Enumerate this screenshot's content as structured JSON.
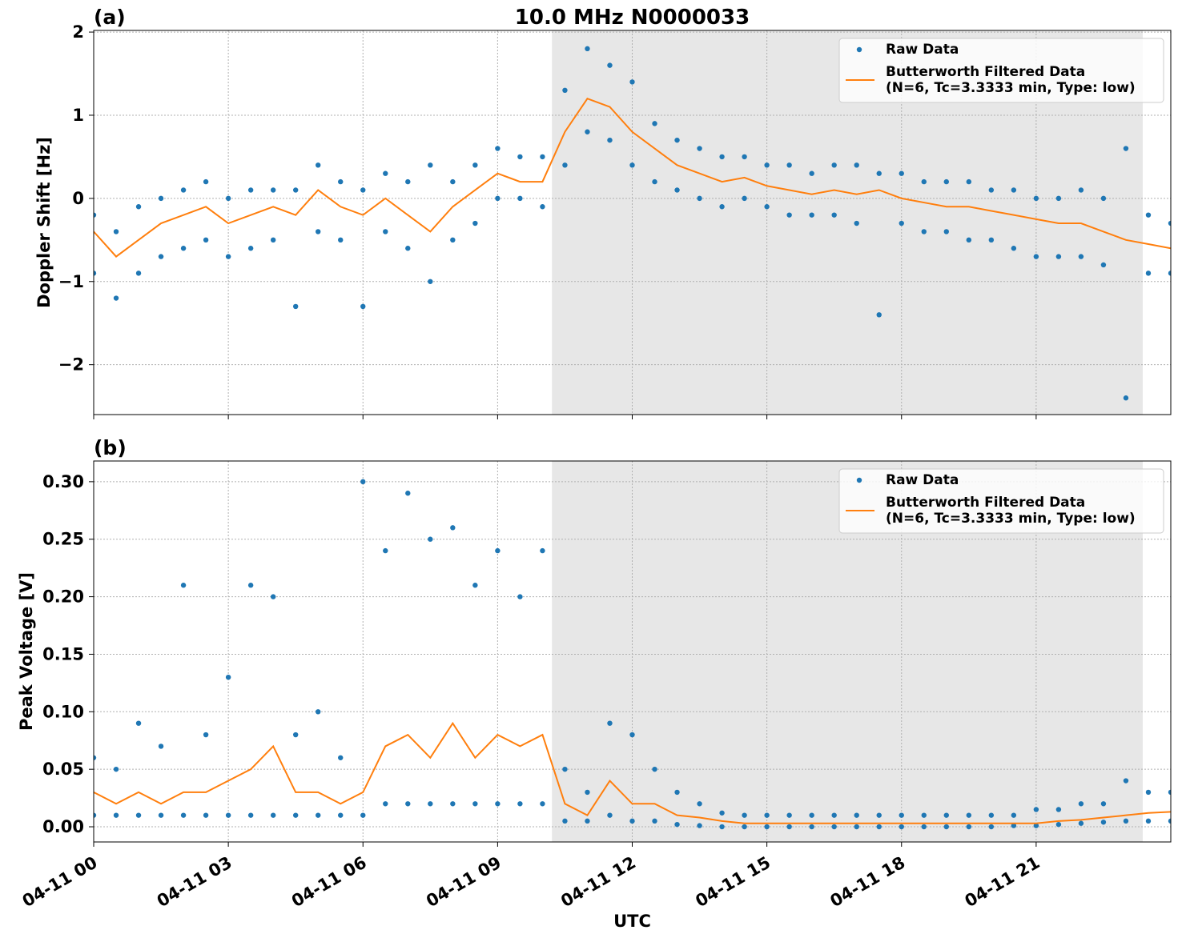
{
  "chart_data": [
    {
      "type": "line",
      "panel_label": "(a)",
      "title": "10.0 MHz N0000033",
      "ylabel": "Doppler Shift [Hz]",
      "xlim": [
        0,
        24
      ],
      "xticks": [
        0,
        3,
        6,
        9,
        12,
        15,
        18,
        21
      ],
      "ylim": [
        -2.6,
        2.02
      ],
      "yticks": [
        {
          "value": -2,
          "label": "−2"
        },
        {
          "value": -1,
          "label": "−1"
        },
        0,
        1,
        2
      ],
      "grid": true,
      "legend": "upper right",
      "shaded_span": [
        10.21,
        23.375
      ],
      "series": [
        {
          "name": "Raw Data",
          "color": "#1f77b4",
          "kind": "scatter",
          "x": [
            0,
            0.5,
            1,
            1.5,
            2,
            2.5,
            3,
            3.5,
            4,
            4.5,
            5,
            5.5,
            6,
            6.5,
            7,
            7.5,
            8,
            8.5,
            9,
            9.5,
            10,
            10.5,
            11,
            11.5,
            12,
            12.5,
            13,
            13.5,
            14,
            14.5,
            15,
            15.5,
            16,
            16.5,
            17,
            17.5,
            18,
            18.5,
            19,
            19.5,
            20,
            20.5,
            21,
            21.5,
            22,
            22.5,
            23,
            23.5,
            24,
            0,
            0.5,
            1,
            1.5,
            2,
            2.5,
            3,
            3.5,
            4,
            4.5,
            5,
            5.5,
            6,
            6.5,
            7,
            7.5,
            8,
            8.5,
            9,
            9.5,
            10,
            10.5,
            11,
            11.5,
            12,
            12.5,
            13,
            13.5,
            14,
            14.5,
            15,
            15.5,
            16,
            16.5,
            17,
            17.5,
            18,
            18.5,
            19,
            19.5,
            20,
            20.5,
            21,
            21.5,
            22,
            22.5,
            23,
            23.5,
            24
          ],
          "values": [
            -0.2,
            -0.4,
            -0.1,
            0.0,
            0.1,
            0.2,
            0.0,
            0.1,
            0.1,
            0.1,
            0.4,
            0.2,
            0.1,
            0.3,
            0.2,
            0.4,
            0.2,
            0.4,
            0.6,
            0.5,
            0.5,
            1.3,
            1.8,
            1.6,
            1.4,
            0.9,
            0.7,
            0.6,
            0.5,
            0.5,
            0.4,
            0.4,
            0.3,
            0.4,
            0.4,
            0.3,
            0.3,
            0.2,
            0.2,
            0.2,
            0.1,
            0.1,
            0.0,
            0.0,
            0.1,
            0.0,
            0.6,
            -0.2,
            -0.3,
            -0.9,
            -1.2,
            -0.9,
            -0.7,
            -0.6,
            -0.5,
            -0.7,
            -0.6,
            -0.5,
            -1.3,
            -0.4,
            -0.5,
            -1.3,
            -0.4,
            -0.6,
            -1.0,
            -0.5,
            -0.3,
            0.0,
            0.0,
            -0.1,
            0.4,
            0.8,
            0.7,
            0.4,
            0.2,
            0.1,
            0.0,
            -0.1,
            0.0,
            -0.1,
            -0.2,
            -0.2,
            -0.2,
            -0.3,
            -1.4,
            -0.3,
            -0.4,
            -0.4,
            -0.5,
            -0.5,
            -0.6,
            -0.7,
            -0.7,
            -0.7,
            -0.8,
            -2.4,
            -0.9,
            -0.9
          ]
        },
        {
          "name": "Butterworth Filtered Data\n(N=6, Tc=3.3333 min, Type: low)",
          "color": "#ff7f0e",
          "kind": "line",
          "x": [
            0,
            0.5,
            1,
            1.5,
            2,
            2.5,
            3,
            3.5,
            4,
            4.5,
            5,
            5.5,
            6,
            6.5,
            7,
            7.5,
            8,
            8.5,
            9,
            9.5,
            10,
            10.5,
            11,
            11.5,
            12,
            12.5,
            13,
            13.5,
            14,
            14.5,
            15,
            15.5,
            16,
            16.5,
            17,
            17.5,
            18,
            18.5,
            19,
            19.5,
            20,
            20.5,
            21,
            21.5,
            22,
            22.5,
            23,
            23.5,
            24
          ],
          "values": [
            -0.4,
            -0.7,
            -0.5,
            -0.3,
            -0.2,
            -0.1,
            -0.3,
            -0.2,
            -0.1,
            -0.2,
            0.1,
            -0.1,
            -0.2,
            0.0,
            -0.2,
            -0.4,
            -0.1,
            0.1,
            0.3,
            0.2,
            0.2,
            0.8,
            1.2,
            1.1,
            0.8,
            0.6,
            0.4,
            0.3,
            0.2,
            0.25,
            0.15,
            0.1,
            0.05,
            0.1,
            0.05,
            0.1,
            0.0,
            -0.05,
            -0.1,
            -0.1,
            -0.15,
            -0.2,
            -0.25,
            -0.3,
            -0.3,
            -0.4,
            -0.5,
            -0.55,
            -0.6
          ]
        }
      ]
    },
    {
      "type": "line",
      "panel_label": "(b)",
      "ylabel": "Peak Voltage [V]",
      "xlabel": "UTC",
      "xlim": [
        0,
        24
      ],
      "xticks": [
        {
          "value": 0,
          "label": "04-11 00"
        },
        {
          "value": 3,
          "label": "04-11 03"
        },
        {
          "value": 6,
          "label": "04-11 06"
        },
        {
          "value": 9,
          "label": "04-11 09"
        },
        {
          "value": 12,
          "label": "04-11 12"
        },
        {
          "value": 15,
          "label": "04-11 15"
        },
        {
          "value": 18,
          "label": "04-11 18"
        },
        {
          "value": 21,
          "label": "04-11 21"
        }
      ],
      "ylim": [
        -0.0132,
        0.318
      ],
      "yticks": [
        {
          "value": 0,
          "label": "0.00"
        },
        {
          "value": 0.05,
          "label": "0.05"
        },
        {
          "value": 0.1,
          "label": "0.10"
        },
        {
          "value": 0.15,
          "label": "0.15"
        },
        {
          "value": 0.2,
          "label": "0.20"
        },
        {
          "value": 0.25,
          "label": "0.25"
        },
        {
          "value": 0.3,
          "label": "0.30"
        }
      ],
      "grid": true,
      "legend": "upper right",
      "shaded_span": [
        10.21,
        23.375
      ],
      "series": [
        {
          "name": "Raw Data",
          "color": "#1f77b4",
          "kind": "scatter",
          "x": [
            0,
            0.5,
            1,
            1.5,
            2,
            2.5,
            3,
            3.5,
            4,
            4.5,
            5,
            5.5,
            6,
            6.5,
            7,
            7.5,
            8,
            8.5,
            9,
            9.5,
            10,
            10.5,
            11,
            11.5,
            12,
            12.5,
            13,
            13.5,
            14,
            14.5,
            15,
            15.5,
            16,
            16.5,
            17,
            17.5,
            18,
            18.5,
            19,
            19.5,
            20,
            20.5,
            21,
            21.5,
            22,
            22.5,
            23,
            23.5,
            24,
            0,
            0.5,
            1,
            1.5,
            2,
            2.5,
            3,
            3.5,
            4,
            4.5,
            5,
            5.5,
            6,
            6.5,
            7,
            7.5,
            8,
            8.5,
            9,
            9.5,
            10,
            10.5,
            11,
            11.5,
            12,
            12.5,
            13,
            13.5,
            14,
            14.5,
            15,
            15.5,
            16,
            16.5,
            17,
            17.5,
            18,
            18.5,
            19,
            19.5,
            20,
            20.5,
            21,
            21.5,
            22,
            22.5,
            23,
            23.5,
            24
          ],
          "values": [
            0.06,
            0.05,
            0.09,
            0.07,
            0.21,
            0.08,
            0.13,
            0.21,
            0.2,
            0.08,
            0.1,
            0.06,
            0.3,
            0.24,
            0.29,
            0.25,
            0.26,
            0.21,
            0.24,
            0.2,
            0.24,
            0.05,
            0.03,
            0.09,
            0.08,
            0.05,
            0.03,
            0.02,
            0.012,
            0.01,
            0.01,
            0.01,
            0.01,
            0.01,
            0.01,
            0.01,
            0.01,
            0.01,
            0.01,
            0.01,
            0.01,
            0.01,
            0.015,
            0.015,
            0.02,
            0.02,
            0.04,
            0.03,
            0.03,
            0.01,
            0.01,
            0.01,
            0.01,
            0.01,
            0.01,
            0.01,
            0.01,
            0.01,
            0.01,
            0.01,
            0.01,
            0.01,
            0.02,
            0.02,
            0.02,
            0.02,
            0.02,
            0.02,
            0.02,
            0.02,
            0.005,
            0.005,
            0.01,
            0.005,
            0.005,
            0.002,
            0.001,
            0,
            0,
            0,
            0,
            0,
            0,
            0,
            0,
            0,
            0,
            0,
            0,
            0,
            0.001,
            0.001,
            0.002,
            0.003,
            0.004,
            0.005,
            0.005,
            0.005
          ]
        },
        {
          "name": "Butterworth Filtered Data\n(N=6, Tc=3.3333 min, Type: low)",
          "color": "#ff7f0e",
          "kind": "line",
          "x": [
            0,
            0.5,
            1,
            1.5,
            2,
            2.5,
            3,
            3.5,
            4,
            4.5,
            5,
            5.5,
            6,
            6.5,
            7,
            7.5,
            8,
            8.5,
            9,
            9.5,
            10,
            10.5,
            11,
            11.5,
            12,
            12.5,
            13,
            13.5,
            14,
            14.5,
            15,
            15.5,
            16,
            16.5,
            17,
            17.5,
            18,
            18.5,
            19,
            19.5,
            20,
            20.5,
            21,
            21.5,
            22,
            22.5,
            23,
            23.5,
            24
          ],
          "values": [
            0.03,
            0.02,
            0.03,
            0.02,
            0.03,
            0.03,
            0.04,
            0.05,
            0.07,
            0.03,
            0.03,
            0.02,
            0.03,
            0.07,
            0.08,
            0.06,
            0.09,
            0.06,
            0.08,
            0.07,
            0.08,
            0.02,
            0.01,
            0.04,
            0.02,
            0.02,
            0.01,
            0.008,
            0.005,
            0.003,
            0.003,
            0.003,
            0.003,
            0.003,
            0.003,
            0.003,
            0.003,
            0.003,
            0.003,
            0.003,
            0.003,
            0.003,
            0.003,
            0.005,
            0.006,
            0.008,
            0.01,
            0.012,
            0.013
          ]
        }
      ]
    }
  ]
}
